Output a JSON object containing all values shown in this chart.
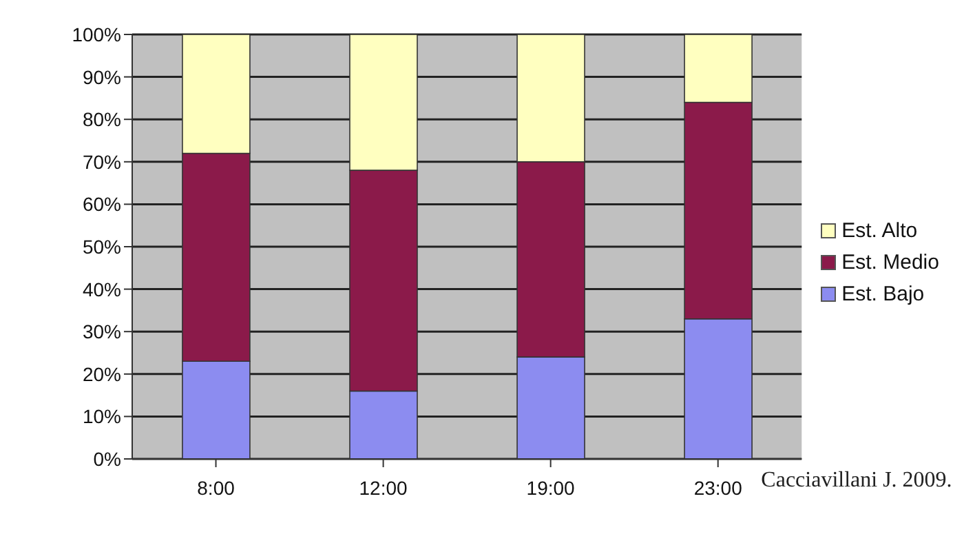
{
  "chart_data": {
    "type": "bar",
    "stacked": true,
    "categories": [
      "8:00",
      "12:00",
      "19:00",
      "23:00"
    ],
    "series": [
      {
        "name": "Est. Bajo",
        "color": "#8c8cf0",
        "values": [
          23,
          16,
          24,
          33
        ]
      },
      {
        "name": "Est. Medio",
        "color": "#8b1a4a",
        "values": [
          49,
          52,
          46,
          51
        ]
      },
      {
        "name": "Est. Alto",
        "color": "#ffffc0",
        "values": [
          28,
          32,
          30,
          16
        ]
      }
    ],
    "ylim": [
      0,
      100
    ],
    "yticks": [
      {
        "value": 0,
        "label": "0%"
      },
      {
        "value": 10,
        "label": "10%"
      },
      {
        "value": 20,
        "label": "20%"
      },
      {
        "value": 30,
        "label": "30%"
      },
      {
        "value": 40,
        "label": "40%"
      },
      {
        "value": 50,
        "label": "50%"
      },
      {
        "value": 60,
        "label": "60%"
      },
      {
        "value": 70,
        "label": "70%"
      },
      {
        "value": 80,
        "label": "80%"
      },
      {
        "value": 90,
        "label": "90%"
      },
      {
        "value": 100,
        "label": "100%"
      }
    ],
    "grid": "y",
    "legend": "right",
    "annotations": [
      "Cacciavillani J. 2009."
    ]
  }
}
